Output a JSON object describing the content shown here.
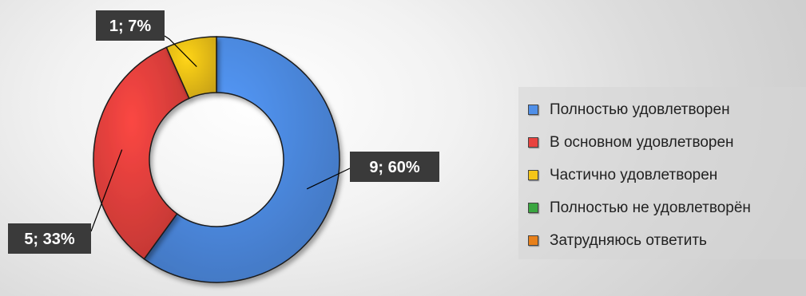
{
  "chart_data": {
    "type": "pie",
    "variant": "donut",
    "title": "",
    "categories": [
      "Полностью удовлетворен",
      "В основном удовлетворен",
      "Частично удовлетворен",
      "Полностью не удовлетворён",
      "Затрудняюсь ответить"
    ],
    "values": [
      9,
      5,
      1,
      0,
      0
    ],
    "percent_labels": [
      "9; 60%",
      "5; 33%",
      "1; 7%",
      "",
      ""
    ],
    "colors": [
      "#4f8fe8",
      "#e8423e",
      "#f5c518",
      "#3aa640",
      "#e8801a"
    ],
    "legend_position": "right"
  }
}
